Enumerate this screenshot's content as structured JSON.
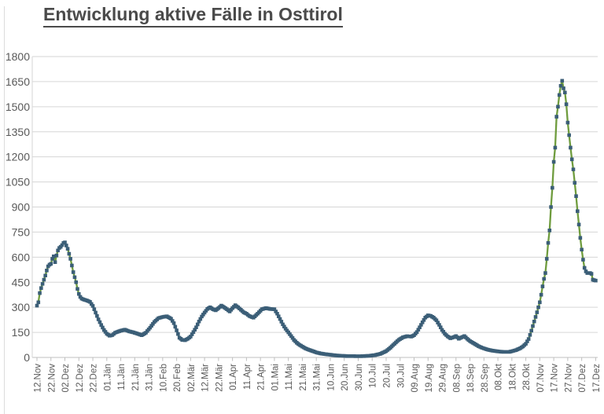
{
  "chart_data": {
    "type": "line",
    "title": "Entwicklung aktive Fälle in Osttirol",
    "xlabel": "",
    "ylabel": "",
    "legend": "none",
    "grid": "horizontal",
    "marker": "square",
    "ylim": [
      0,
      1800
    ],
    "y_ticks": [
      0,
      150,
      300,
      450,
      600,
      750,
      900,
      1050,
      1200,
      1350,
      1500,
      1650,
      1800
    ],
    "x_tick_labels": [
      "12.Nov",
      "22.Nov",
      "02.Dez",
      "12.Dez",
      "22.Dez",
      "01.Jän",
      "11.Jän",
      "21.Jän",
      "31.Jän",
      "10.Feb",
      "20.Feb",
      "02.Mär",
      "12.Mär",
      "22.Mär",
      "01.Apr",
      "11.Apr",
      "21.Apr",
      "01.Mai",
      "11.Mai",
      "21.Mai",
      "31.Mai",
      "10.Jun",
      "20.Jun",
      "30.Jun",
      "10.Jul",
      "20.Jul",
      "30.Jul",
      "09.Aug",
      "19.Aug",
      "29.Aug",
      "08.Sep",
      "18.Sep",
      "28.Sep",
      "08.Okt",
      "18.Okt",
      "28.Okt",
      "07.Nov",
      "17.Nov",
      "27.Nov",
      "07.Dez",
      "17.Dez"
    ],
    "days_between_ticks": 10,
    "x_unit": "days since 12.Nov (first tick)",
    "points": [
      [
        0,
        310
      ],
      [
        1,
        330
      ],
      [
        2,
        385
      ],
      [
        3,
        415
      ],
      [
        4,
        440
      ],
      [
        5,
        465
      ],
      [
        6,
        490
      ],
      [
        7,
        520
      ],
      [
        8,
        545
      ],
      [
        9,
        555
      ],
      [
        10,
        560
      ],
      [
        11,
        590
      ],
      [
        12,
        605
      ],
      [
        13,
        570
      ],
      [
        14,
        610
      ],
      [
        15,
        640
      ],
      [
        16,
        655
      ],
      [
        17,
        662
      ],
      [
        18,
        672
      ],
      [
        19,
        685
      ],
      [
        20,
        688
      ],
      [
        21,
        670
      ],
      [
        22,
        650
      ],
      [
        23,
        620
      ],
      [
        24,
        590
      ],
      [
        25,
        550
      ],
      [
        26,
        510
      ],
      [
        27,
        480
      ],
      [
        28,
        450
      ],
      [
        29,
        410
      ],
      [
        30,
        380
      ],
      [
        31,
        362
      ],
      [
        32,
        352
      ],
      [
        33,
        348
      ],
      [
        34,
        345
      ],
      [
        36,
        340
      ],
      [
        38,
        332
      ],
      [
        39,
        320
      ],
      [
        40,
        308
      ],
      [
        42,
        268
      ],
      [
        44,
        228
      ],
      [
        46,
        194
      ],
      [
        48,
        164
      ],
      [
        50,
        142
      ],
      [
        52,
        130
      ],
      [
        54,
        134
      ],
      [
        56,
        148
      ],
      [
        58,
        154
      ],
      [
        60,
        160
      ],
      [
        63,
        166
      ],
      [
        66,
        156
      ],
      [
        69,
        150
      ],
      [
        72,
        142
      ],
      [
        75,
        133
      ],
      [
        78,
        148
      ],
      [
        81,
        178
      ],
      [
        84,
        212
      ],
      [
        87,
        235
      ],
      [
        90,
        242
      ],
      [
        93,
        246
      ],
      [
        96,
        232
      ],
      [
        98,
        205
      ],
      [
        100,
        162
      ],
      [
        102,
        118
      ],
      [
        104,
        105
      ],
      [
        106,
        103
      ],
      [
        108,
        112
      ],
      [
        110,
        125
      ],
      [
        112,
        152
      ],
      [
        114,
        180
      ],
      [
        116,
        215
      ],
      [
        118,
        245
      ],
      [
        120,
        268
      ],
      [
        122,
        290
      ],
      [
        124,
        300
      ],
      [
        126,
        288
      ],
      [
        128,
        282
      ],
      [
        130,
        295
      ],
      [
        132,
        310
      ],
      [
        134,
        300
      ],
      [
        136,
        288
      ],
      [
        138,
        275
      ],
      [
        140,
        295
      ],
      [
        142,
        312
      ],
      [
        144,
        300
      ],
      [
        146,
        285
      ],
      [
        148,
        270
      ],
      [
        150,
        262
      ],
      [
        152,
        248
      ],
      [
        155,
        238
      ],
      [
        158,
        262
      ],
      [
        161,
        288
      ],
      [
        164,
        295
      ],
      [
        167,
        290
      ],
      [
        170,
        288
      ],
      [
        172,
        262
      ],
      [
        174,
        230
      ],
      [
        176,
        198
      ],
      [
        178,
        172
      ],
      [
        180,
        150
      ],
      [
        182,
        128
      ],
      [
        184,
        105
      ],
      [
        186,
        88
      ],
      [
        188,
        75
      ],
      [
        190,
        65
      ],
      [
        192,
        55
      ],
      [
        194,
        48
      ],
      [
        196,
        42
      ],
      [
        198,
        36
      ],
      [
        200,
        30
      ],
      [
        203,
        24
      ],
      [
        206,
        20
      ],
      [
        210,
        16
      ],
      [
        214,
        12
      ],
      [
        218,
        10
      ],
      [
        222,
        8
      ],
      [
        226,
        8
      ],
      [
        230,
        7
      ],
      [
        234,
        8
      ],
      [
        238,
        10
      ],
      [
        242,
        14
      ],
      [
        246,
        22
      ],
      [
        250,
        38
      ],
      [
        253,
        58
      ],
      [
        256,
        82
      ],
      [
        259,
        105
      ],
      [
        262,
        120
      ],
      [
        265,
        127
      ],
      [
        268,
        125
      ],
      [
        270,
        133
      ],
      [
        272,
        152
      ],
      [
        274,
        180
      ],
      [
        276,
        210
      ],
      [
        278,
        238
      ],
      [
        280,
        252
      ],
      [
        282,
        248
      ],
      [
        284,
        238
      ],
      [
        286,
        222
      ],
      [
        288,
        195
      ],
      [
        290,
        165
      ],
      [
        292,
        142
      ],
      [
        294,
        126
      ],
      [
        296,
        115
      ],
      [
        298,
        120
      ],
      [
        300,
        128
      ],
      [
        302,
        112
      ],
      [
        304,
        120
      ],
      [
        306,
        128
      ],
      [
        308,
        112
      ],
      [
        310,
        98
      ],
      [
        312,
        88
      ],
      [
        314,
        78
      ],
      [
        316,
        68
      ],
      [
        318,
        60
      ],
      [
        320,
        54
      ],
      [
        323,
        46
      ],
      [
        326,
        41
      ],
      [
        330,
        36
      ],
      [
        334,
        33
      ],
      [
        338,
        33
      ],
      [
        340,
        37
      ],
      [
        343,
        44
      ],
      [
        346,
        55
      ],
      [
        348,
        66
      ],
      [
        350,
        82
      ],
      [
        352,
        110
      ],
      [
        354,
        160
      ],
      [
        356,
        215
      ],
      [
        358,
        270
      ],
      [
        360,
        330
      ],
      [
        361,
        375
      ],
      [
        362,
        425
      ],
      [
        363,
        470
      ],
      [
        364,
        505
      ],
      [
        365,
        590
      ],
      [
        366,
        685
      ],
      [
        367,
        760
      ],
      [
        368,
        900
      ],
      [
        369,
        1015
      ],
      [
        370,
        1170
      ],
      [
        371,
        1255
      ],
      [
        372,
        1440
      ],
      [
        373,
        1500
      ],
      [
        374,
        1570
      ],
      [
        375,
        1625
      ],
      [
        376,
        1655
      ],
      [
        377,
        1610
      ],
      [
        378,
        1585
      ],
      [
        379,
        1515
      ],
      [
        380,
        1405
      ],
      [
        381,
        1330
      ],
      [
        382,
        1255
      ],
      [
        383,
        1185
      ],
      [
        384,
        1125
      ],
      [
        385,
        1045
      ],
      [
        386,
        965
      ],
      [
        387,
        875
      ],
      [
        388,
        795
      ],
      [
        389,
        715
      ],
      [
        390,
        645
      ],
      [
        391,
        585
      ],
      [
        392,
        536
      ],
      [
        393,
        515
      ],
      [
        394,
        505
      ],
      [
        395,
        505
      ],
      [
        396,
        505
      ],
      [
        397,
        500
      ],
      [
        398,
        465
      ],
      [
        399,
        462
      ],
      [
        400,
        460
      ]
    ],
    "colors": {
      "line": "#6f9c3e",
      "marker": "#3b5e77",
      "grid": "#d6d6d6",
      "axis_line": "#bfbfbf",
      "axis_text": "#595959",
      "title_text": "#4a4a4a",
      "background": "#ffffff"
    }
  }
}
